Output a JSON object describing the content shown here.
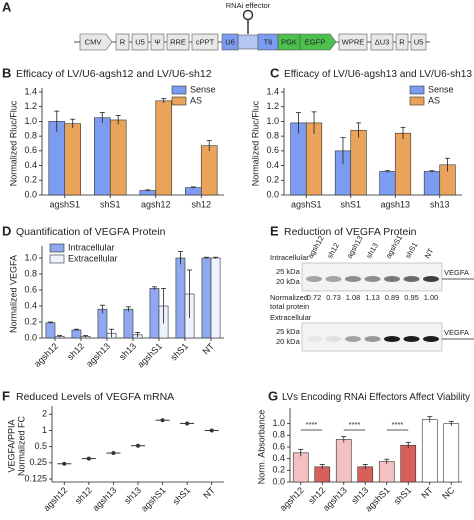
{
  "panels": {
    "A": {
      "letter": "A",
      "label": "RNAi effector",
      "elements": [
        "CMV",
        "R",
        "U5",
        "Ψ",
        "RRE",
        "cPPT",
        "U6",
        "T6",
        "PGK",
        "EGFP",
        "WPRE",
        "ΔU3",
        "R",
        "U5"
      ]
    },
    "E": {
      "letter": "E",
      "title": "Reduction of VEGFA Protein",
      "lanes": [
        "agsh12",
        "sh12",
        "agsh13",
        "sh13",
        "agshS1",
        "shS1",
        "NT"
      ],
      "intracellular": "Intracellular",
      "extracellular": "Extracellular",
      "markers": [
        "25 kDa",
        "20 kDa"
      ],
      "target": "VEGFA",
      "total_label": [
        "Normalized",
        "total protein"
      ],
      "total": [
        "0.72",
        "0.73",
        "1.08",
        "1.13",
        "0.89",
        "0.95",
        "1.00"
      ]
    }
  },
  "chart_data": [
    {
      "type": "bar",
      "panel": "B",
      "title": "Efficacy of LV/U6-agsh12 and LV/U6-sh12",
      "ylabel": [
        "Normalized Rluc/Fluc"
      ],
      "categories": [
        "agshS1",
        "shS1",
        "agsh12",
        "sh12"
      ],
      "series": [
        {
          "name": "Sense",
          "color": "#7b9cf0",
          "values": [
            1.0,
            1.05,
            0.06,
            0.1
          ],
          "errors": [
            0.14,
            0.07,
            0.01,
            0.01
          ]
        },
        {
          "name": "AS",
          "color": "#e9a35a",
          "values": [
            0.97,
            1.02,
            1.28,
            0.67
          ],
          "errors": [
            0.06,
            0.06,
            0.03,
            0.07
          ]
        }
      ],
      "ylim": [
        0,
        1.4
      ],
      "yticks": [
        {
          "value": 0,
          "label": "0.0"
        },
        0.2,
        0.4,
        0.6,
        0.8,
        {
          "value": 1,
          "label": "1.0"
        },
        1.2,
        1.4
      ],
      "legend": "upper right"
    },
    {
      "type": "bar",
      "panel": "C",
      "title": "Efficacy of LV/U6-agsh13 and LV/U6-sh13",
      "ylabel": [
        "Normalized Rluc/Fluc"
      ],
      "categories": [
        "agshS1",
        "shS1",
        "agsh13",
        "sh13"
      ],
      "series": [
        {
          "name": "Sense",
          "color": "#7b9cf0",
          "values": [
            0.98,
            0.6,
            0.32,
            0.32
          ],
          "errors": [
            0.14,
            0.18,
            0.01,
            0.01
          ]
        },
        {
          "name": "AS",
          "color": "#e9a35a",
          "values": [
            0.98,
            0.88,
            0.84,
            0.41
          ],
          "errors": [
            0.15,
            0.1,
            0.08,
            0.09
          ]
        }
      ],
      "ylim": [
        0,
        1.4
      ],
      "yticks": [
        {
          "value": 0,
          "label": "0.0"
        },
        0.2,
        0.4,
        0.6,
        0.8,
        {
          "value": 1,
          "label": "1.0"
        },
        1.2,
        1.4
      ],
      "legend": "upper right"
    },
    {
      "type": "bar",
      "panel": "D",
      "title": "Quantification of VEGFA Protein",
      "ylabel": [
        "Normalized VEGFA"
      ],
      "categories": [
        "agsh12",
        "sh12",
        "agsh13",
        "sh13",
        "agshS1",
        "shS1",
        "NT"
      ],
      "series": [
        {
          "name": "Intracellular",
          "color": "#8fa8ef",
          "values": [
            0.19,
            0.1,
            0.36,
            0.36,
            0.62,
            1.0,
            1.0
          ],
          "errors": [
            0.01,
            0.01,
            0.05,
            0.03,
            0.02,
            0.08,
            0.01
          ]
        },
        {
          "name": "Extracellular",
          "color": "#eef2ff",
          "values": [
            0.02,
            0.02,
            0.06,
            0.04,
            0.4,
            0.55,
            1.0
          ],
          "errors": [
            0.01,
            0.01,
            0.05,
            0.03,
            0.22,
            0.3,
            0.01
          ]
        }
      ],
      "ylim": [
        0,
        1.1
      ],
      "yticks": [
        {
          "value": 0,
          "label": "0.0"
        },
        0.2,
        0.4,
        0.6,
        0.8,
        {
          "value": 1,
          "label": "1.0"
        }
      ],
      "legend": "upper left"
    },
    {
      "type": "dot",
      "panel": "F",
      "title": "Reduced Levels of VEGFA mRNA",
      "ylabel": [
        "VEGFA/PPIA",
        "Normalized FC"
      ],
      "categories": [
        "agsh12",
        "sh12",
        "agsh13",
        "sh13",
        "agshS1",
        "shS1",
        "NT"
      ],
      "values": [
        0.24,
        0.3,
        0.38,
        0.52,
        1.55,
        1.35,
        1.0
      ],
      "color": "#333333",
      "log": true,
      "ylim": [
        0.11,
        2.4
      ],
      "yticks": [
        0.125,
        0.25,
        0.5,
        1,
        2
      ]
    },
    {
      "type": "bar",
      "panel": "G",
      "title": "LVs Encoding RNAi Effectors Affect Viability",
      "ylabel": [
        "Norm. Absorbance"
      ],
      "categories": [
        "agsh12",
        "sh12",
        "agsh13",
        "sh13",
        "agshS1",
        "shS1",
        "NT",
        "NC"
      ],
      "values": [
        0.5,
        0.26,
        0.73,
        0.26,
        0.35,
        0.63,
        1.07,
        1.0
      ],
      "errors": [
        0.06,
        0.04,
        0.05,
        0.04,
        0.04,
        0.05,
        0.05,
        0.04
      ],
      "colors": [
        "#f4c0c0",
        "#d8605c",
        "#f4c0c0",
        "#d8605c",
        "#f4c0c0",
        "#d8605c",
        "#ffffff",
        "#ffffff"
      ],
      "annotations": [
        "****",
        "****",
        "****"
      ],
      "ylim": [
        0,
        1.2
      ],
      "yticks": [
        {
          "value": 0,
          "label": "0.0"
        },
        0.2,
        0.4,
        0.6,
        0.8,
        {
          "value": 1,
          "label": "1.0"
        }
      ]
    }
  ]
}
